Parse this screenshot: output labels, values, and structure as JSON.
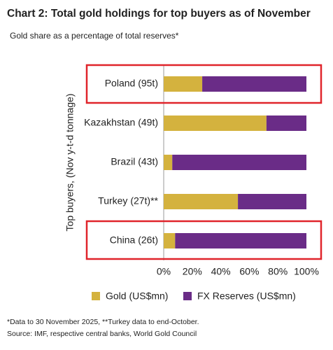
{
  "chart_data": {
    "type": "stacked-bar-horizontal",
    "title": "Chart 2: Total gold holdings for top buyers as of November",
    "subtitle": "Gold share as a percentage of total reserves*",
    "y_label": "Top buyers, (Nov y-t-d tonnage)",
    "categories": [
      "Poland (95t)",
      "Kazakhstan (49t)",
      "Brazil (43t)",
      "Turkey (27t)**",
      "China (26t)"
    ],
    "series": [
      {
        "name": "Gold (US$mn)",
        "color": "#d4b23e",
        "values": [
          27,
          72,
          6,
          52,
          8
        ]
      },
      {
        "name": "FX Reserves (US$mn)",
        "color": "#6a2c87",
        "values": [
          73,
          28,
          94,
          48,
          92
        ]
      }
    ],
    "xlim": [
      0,
      100
    ],
    "xticks": [
      {
        "value": 0,
        "label": "0%"
      },
      {
        "value": 20,
        "label": "20%"
      },
      {
        "value": 40,
        "label": "40%"
      },
      {
        "value": 60,
        "label": "60%"
      },
      {
        "value": 80,
        "label": "80%"
      },
      {
        "value": 100,
        "label": "100%"
      }
    ],
    "footnotes": [
      "*Data to 30 November 2025, **Turkey data to end-October.",
      "Source: IMF, respective central banks, World Gold Council"
    ]
  }
}
